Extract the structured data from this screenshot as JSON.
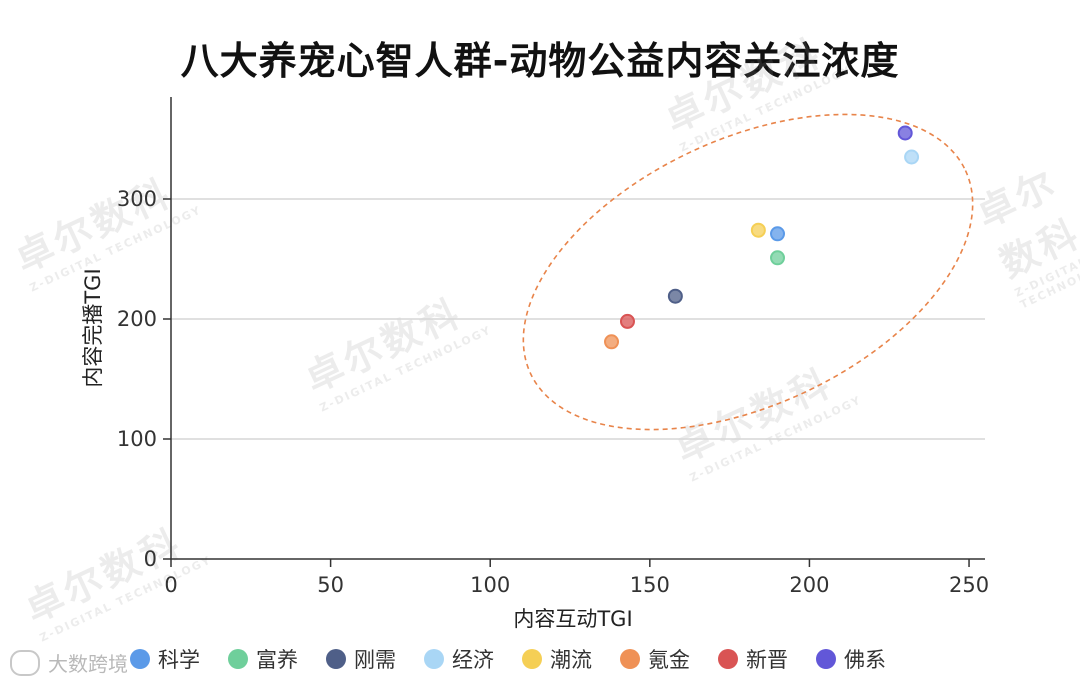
{
  "title": "八大养宠心智人群-动物公益内容关注浓度",
  "chart_data": {
    "type": "scatter",
    "title": "八大养宠心智人群-动物公益内容关注浓度",
    "xlabel": "内容互动TGI",
    "ylabel": "内容完播TGI",
    "xlim": [
      0,
      255
    ],
    "ylim": [
      0,
      385
    ],
    "xticks": [
      "0",
      "50",
      "100",
      "150",
      "200",
      "250"
    ],
    "yticks": [
      "0",
      "100",
      "200",
      "300"
    ],
    "grid": "horizontal",
    "legend_position": "bottom",
    "series": [
      {
        "name": "科学",
        "color": "#5b9ae8",
        "points": [
          {
            "x": 190,
            "y": 271
          }
        ]
      },
      {
        "name": "富养",
        "color": "#6fcf9b",
        "points": [
          {
            "x": 190,
            "y": 251
          }
        ]
      },
      {
        "name": "刚需",
        "color": "#4f5f88",
        "points": [
          {
            "x": 158,
            "y": 219
          }
        ]
      },
      {
        "name": "经济",
        "color": "#a9d6f5",
        "points": [
          {
            "x": 232,
            "y": 335
          }
        ]
      },
      {
        "name": "潮流",
        "color": "#f5cf55",
        "points": [
          {
            "x": 184,
            "y": 274
          }
        ]
      },
      {
        "name": "氪金",
        "color": "#ef9156",
        "points": [
          {
            "x": 138,
            "y": 181
          }
        ]
      },
      {
        "name": "新晋",
        "color": "#d95454",
        "points": [
          {
            "x": 143,
            "y": 198
          }
        ]
      },
      {
        "name": "佛系",
        "color": "#6257d8",
        "points": [
          {
            "x": 230,
            "y": 355
          }
        ]
      }
    ],
    "annotation_ellipse_color": "#e8844a"
  },
  "watermark": {
    "brand": "卓尔数科",
    "sub": "Z-DIGITAL TECHNOLOGY"
  },
  "source_note": "大数跨境"
}
